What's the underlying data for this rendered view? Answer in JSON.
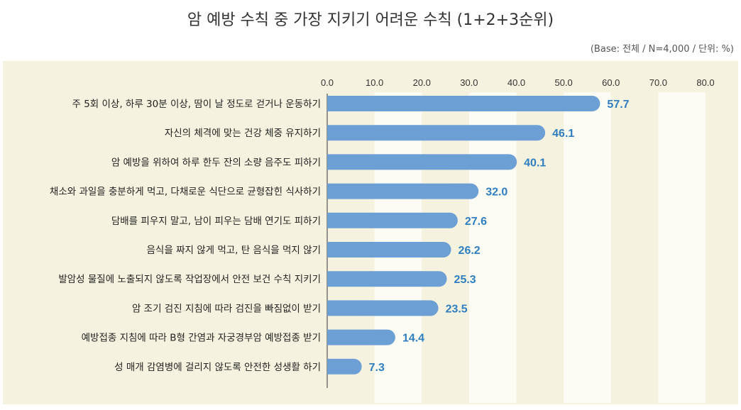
{
  "header": {
    "title": "암 예방 수칙 중 가장 지키기 어려운 수칙 (1+2+3순위)",
    "base_note": "(Base: 전체 / N=4,000 / 단위: %)"
  },
  "chart_data": {
    "type": "bar",
    "orientation": "horizontal",
    "title": "암 예방 수칙 중 가장 지키기 어려운 수칙 (1+2+3순위)",
    "xlim": [
      0,
      80
    ],
    "ticks": [
      "0.0",
      "10.0",
      "20.0",
      "30.0",
      "40.0",
      "50.0",
      "60.0",
      "70.0",
      "80.0"
    ],
    "tick_values": [
      0,
      10,
      20,
      30,
      40,
      50,
      60,
      70,
      80
    ],
    "categories": [
      "주 5회 이상, 하루 30분 이상, 땀이 날 정도로 걷거나 운동하기",
      "자신의 체격에 맞는 건강 체중 유지하기",
      "암 예방을 위하여 하루 한두 잔의 소량 음주도 피하기",
      "채소와 과일을 충분하게 먹고, 다채로운 식단으로 균형잡힌 식사하기",
      "담배를 피우지 말고, 남이 피우는 담배 연기도 피하기",
      "음식을 짜지 않게 먹고, 탄 음식을 먹지 않기",
      "발암성 물질에 노출되지 않도록 작업장에서 안전 보건 수칙 지키기",
      "암 조기 검진 지침에 따라 검진을 빠짐없이 받기",
      "예방접종 지침에 따라 B형 간염과 자궁경부암 예방접종 받기",
      "성 매개 감염병에 걸리지 않도록 안전한 성생활 하기"
    ],
    "values": [
      57.7,
      46.1,
      40.1,
      32.0,
      27.6,
      26.2,
      25.3,
      23.5,
      14.4,
      7.3
    ],
    "value_labels": [
      "57.7",
      "46.1",
      "40.1",
      "32.0",
      "27.6",
      "26.2",
      "25.3",
      "23.5",
      "14.4",
      "7.3"
    ],
    "bar_color": "#6c9fd3",
    "label_color": "#2f7fc0",
    "band_color": "#fcfbf4",
    "background_color": "#f6f2e0",
    "grid": false,
    "legend": "none"
  }
}
